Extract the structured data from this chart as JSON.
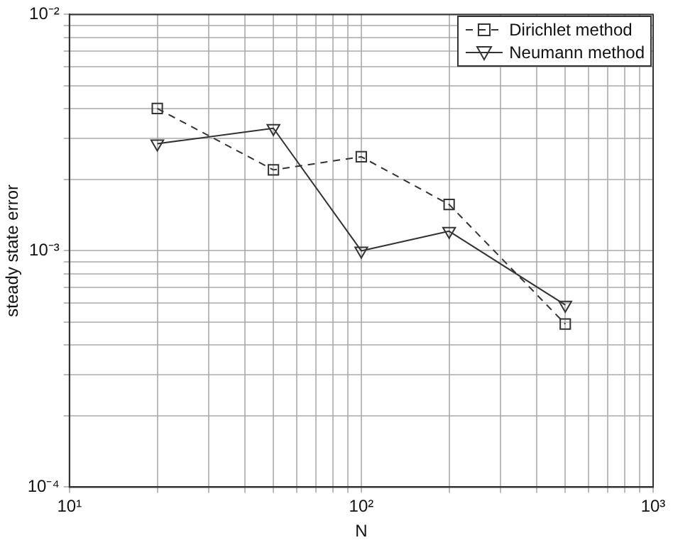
{
  "chart_data": {
    "type": "line",
    "xlabel": "N",
    "ylabel": "steady state error",
    "log": "xy",
    "grid": true,
    "legend": "top right",
    "x": [
      20,
      50,
      100,
      200,
      500
    ],
    "xlim": [
      10,
      1000
    ],
    "xticks": [
      {
        "value": 10,
        "label": "10¹"
      },
      {
        "value": 20,
        "label": null
      },
      {
        "value": 30,
        "label": null
      },
      {
        "value": 40,
        "label": null
      },
      {
        "value": 50,
        "label": null
      },
      {
        "value": 60,
        "label": null
      },
      {
        "value": 70,
        "label": null
      },
      {
        "value": 80,
        "label": null
      },
      {
        "value": 90,
        "label": null
      },
      {
        "value": 100,
        "label": "10²"
      },
      {
        "value": 200,
        "label": null
      },
      {
        "value": 300,
        "label": null
      },
      {
        "value": 400,
        "label": null
      },
      {
        "value": 500,
        "label": null
      },
      {
        "value": 600,
        "label": null
      },
      {
        "value": 700,
        "label": null
      },
      {
        "value": 800,
        "label": null
      },
      {
        "value": 900,
        "label": null
      },
      {
        "value": 1000,
        "label": "10³"
      }
    ],
    "ylim": [
      0.0001,
      0.01
    ],
    "yticks": [
      {
        "value": 0.0001,
        "label": "10⁻⁴"
      },
      {
        "value": 0.0002,
        "label": null
      },
      {
        "value": 0.0003,
        "label": null
      },
      {
        "value": 0.0004,
        "label": null
      },
      {
        "value": 0.0005,
        "label": null
      },
      {
        "value": 0.0006,
        "label": null
      },
      {
        "value": 0.0007,
        "label": null
      },
      {
        "value": 0.0008,
        "label": null
      },
      {
        "value": 0.0009,
        "label": null
      },
      {
        "value": 0.001,
        "label": "10⁻³"
      },
      {
        "value": 0.002,
        "label": null
      },
      {
        "value": 0.003,
        "label": null
      },
      {
        "value": 0.004,
        "label": null
      },
      {
        "value": 0.005,
        "label": null
      },
      {
        "value": 0.006,
        "label": null
      },
      {
        "value": 0.007,
        "label": null
      },
      {
        "value": 0.008,
        "label": null
      },
      {
        "value": 0.009,
        "label": null
      },
      {
        "value": 0.01,
        "label": "10⁻²"
      }
    ],
    "series": [
      {
        "name": "Dirichlet method",
        "color": "#333333",
        "marker": "square",
        "line_style": "dashed",
        "values": [
          0.004,
          0.0022,
          0.0025,
          0.00157,
          0.00049
        ]
      },
      {
        "name": "Neumann method",
        "color": "#333333",
        "marker": "triangle",
        "line_style": "solid",
        "values": [
          0.00284,
          0.0033,
          0.001,
          0.00121,
          0.00059
        ]
      }
    ]
  }
}
